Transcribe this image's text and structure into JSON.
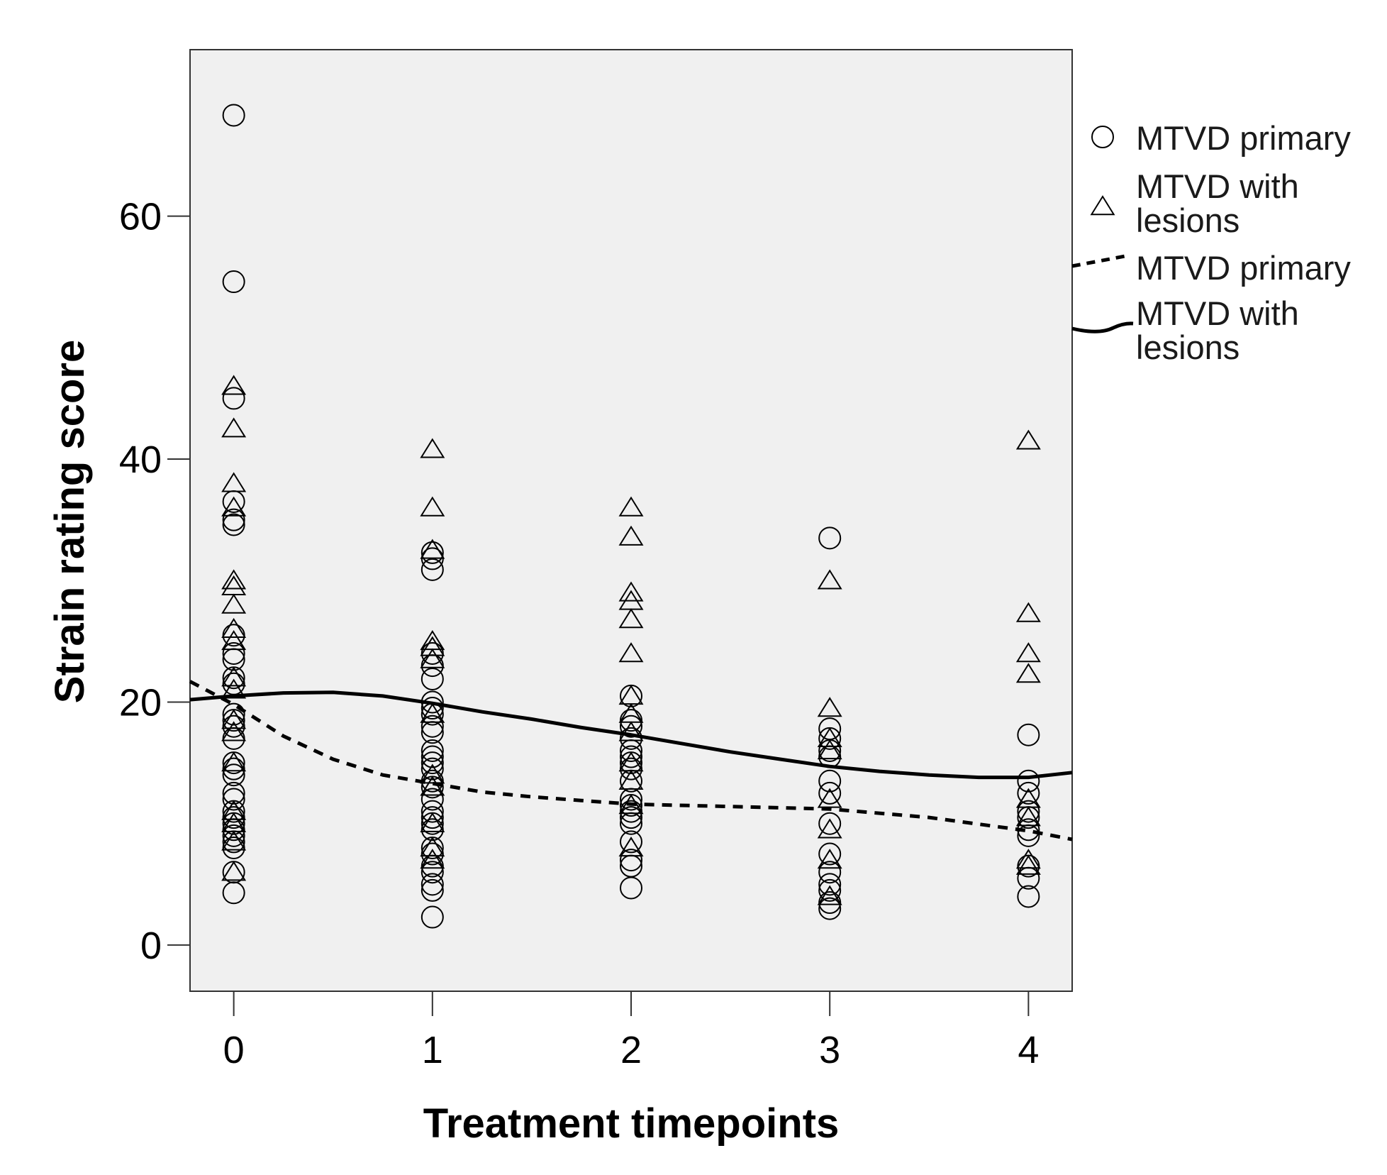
{
  "chart_data": {
    "type": "scatter",
    "xlabel": "Treatment timepoints",
    "ylabel": "Strain rating score",
    "x_ticks": [
      0,
      1,
      2,
      3,
      4
    ],
    "y_ticks": [
      0,
      20,
      40,
      60
    ],
    "xlim": [
      -0.22,
      4.22
    ],
    "ylim": [
      -3.8,
      73.7
    ],
    "grid": false,
    "legend_position": "right",
    "colors": {
      "plot_background": "#f0f0f0",
      "marker": "#000000",
      "line": "#000000"
    },
    "series": [
      {
        "name": "MTVD primary",
        "marker": "circle",
        "points": [
          [
            0,
            68.3
          ],
          [
            0,
            54.6
          ],
          [
            0,
            45.0
          ],
          [
            0,
            36.5
          ],
          [
            0,
            35.0
          ],
          [
            0,
            34.6
          ],
          [
            0,
            25.5
          ],
          [
            0,
            24.0
          ],
          [
            0,
            23.5
          ],
          [
            0,
            22.0
          ],
          [
            0,
            21.5
          ],
          [
            0,
            19.0
          ],
          [
            0,
            18.5
          ],
          [
            0,
            18.0
          ],
          [
            0,
            17.0
          ],
          [
            0,
            15.0
          ],
          [
            0,
            14.5
          ],
          [
            0,
            14.0
          ],
          [
            0,
            12.5
          ],
          [
            0,
            12.0
          ],
          [
            0,
            11.0
          ],
          [
            0,
            10.5
          ],
          [
            0,
            10.0
          ],
          [
            0,
            9.5
          ],
          [
            0,
            9.0
          ],
          [
            0,
            8.5
          ],
          [
            0,
            8.0
          ],
          [
            0,
            6.0
          ],
          [
            0,
            4.3
          ],
          [
            1,
            32.3
          ],
          [
            1,
            31.8
          ],
          [
            1,
            30.9
          ],
          [
            1,
            24.0
          ],
          [
            1,
            23.0
          ],
          [
            1,
            21.9
          ],
          [
            1,
            20.0
          ],
          [
            1,
            19.5
          ],
          [
            1,
            19.0
          ],
          [
            1,
            18.0
          ],
          [
            1,
            17.5
          ],
          [
            1,
            16.0
          ],
          [
            1,
            15.5
          ],
          [
            1,
            15.0
          ],
          [
            1,
            14.5
          ],
          [
            1,
            13.5
          ],
          [
            1,
            13.0
          ],
          [
            1,
            12.0
          ],
          [
            1,
            11.0
          ],
          [
            1,
            10.5
          ],
          [
            1,
            10.0
          ],
          [
            1,
            9.5
          ],
          [
            1,
            8.0
          ],
          [
            1,
            7.5
          ],
          [
            1,
            6.5
          ],
          [
            1,
            6.0
          ],
          [
            1,
            5.0
          ],
          [
            1,
            4.5
          ],
          [
            1,
            2.3
          ],
          [
            2,
            20.5
          ],
          [
            2,
            18.5
          ],
          [
            2,
            18.0
          ],
          [
            2,
            17.0
          ],
          [
            2,
            16.0
          ],
          [
            2,
            15.5
          ],
          [
            2,
            15.0
          ],
          [
            2,
            14.5
          ],
          [
            2,
            13.5
          ],
          [
            2,
            12.0
          ],
          [
            2,
            11.5
          ],
          [
            2,
            11.0
          ],
          [
            2,
            10.5
          ],
          [
            2,
            10.0
          ],
          [
            2,
            8.5
          ],
          [
            2,
            7.0
          ],
          [
            2,
            6.5
          ],
          [
            2,
            4.7
          ],
          [
            3,
            33.5
          ],
          [
            3,
            17.8
          ],
          [
            3,
            17.0
          ],
          [
            3,
            16.0
          ],
          [
            3,
            15.5
          ],
          [
            3,
            13.5
          ],
          [
            3,
            12.5
          ],
          [
            3,
            10.0
          ],
          [
            3,
            7.5
          ],
          [
            3,
            6.0
          ],
          [
            3,
            5.0
          ],
          [
            3,
            4.5
          ],
          [
            3,
            3.5
          ],
          [
            3,
            3.0
          ],
          [
            4,
            17.3
          ],
          [
            4,
            13.5
          ],
          [
            4,
            12.5
          ],
          [
            4,
            11.0
          ],
          [
            4,
            10.5
          ],
          [
            4,
            9.5
          ],
          [
            4,
            9.0
          ],
          [
            4,
            6.5
          ],
          [
            4,
            5.5
          ],
          [
            4,
            4.0
          ]
        ]
      },
      {
        "name": "MTVD with lesions",
        "marker": "triangle",
        "points": [
          [
            0,
            46.0
          ],
          [
            0,
            42.5
          ],
          [
            0,
            38.0
          ],
          [
            0,
            36.0
          ],
          [
            0,
            30.0
          ],
          [
            0,
            29.5
          ],
          [
            0,
            28.0
          ],
          [
            0,
            26.0
          ],
          [
            0,
            25.0
          ],
          [
            0,
            22.0
          ],
          [
            0,
            21.0
          ],
          [
            0,
            18.5
          ],
          [
            0,
            17.5
          ],
          [
            0,
            15.0
          ],
          [
            0,
            11.0
          ],
          [
            0,
            10.0
          ],
          [
            0,
            8.5
          ],
          [
            0,
            6.0
          ],
          [
            1,
            40.8
          ],
          [
            1,
            36.0
          ],
          [
            1,
            32.5
          ],
          [
            1,
            25.0
          ],
          [
            1,
            24.5
          ],
          [
            1,
            23.5
          ],
          [
            1,
            19.0
          ],
          [
            1,
            14.0
          ],
          [
            1,
            13.0
          ],
          [
            1,
            10.0
          ],
          [
            1,
            8.0
          ],
          [
            1,
            7.0
          ],
          [
            2,
            36.0
          ],
          [
            2,
            33.6
          ],
          [
            2,
            29.0
          ],
          [
            2,
            28.3
          ],
          [
            2,
            26.8
          ],
          [
            2,
            24.0
          ],
          [
            2,
            20.5
          ],
          [
            2,
            19.0
          ],
          [
            2,
            17.5
          ],
          [
            2,
            15.0
          ],
          [
            2,
            13.5
          ],
          [
            2,
            11.5
          ],
          [
            2,
            8.0
          ],
          [
            3,
            30.0
          ],
          [
            3,
            19.5
          ],
          [
            3,
            17.0
          ],
          [
            3,
            16.0
          ],
          [
            3,
            12.0
          ],
          [
            3,
            9.5
          ],
          [
            3,
            7.0
          ],
          [
            3,
            4.0
          ],
          [
            4,
            41.5
          ],
          [
            4,
            27.3
          ],
          [
            4,
            24.0
          ],
          [
            4,
            22.3
          ],
          [
            4,
            12.0
          ],
          [
            4,
            10.5
          ],
          [
            4,
            7.0
          ],
          [
            4,
            6.5
          ]
        ]
      }
    ],
    "fit_lines": [
      {
        "name": "MTVD primary",
        "style": "dashed",
        "points": [
          [
            -0.22,
            21.7
          ],
          [
            0,
            19.8
          ],
          [
            0.25,
            17.2
          ],
          [
            0.5,
            15.3
          ],
          [
            0.75,
            14.0
          ],
          [
            1,
            13.3
          ],
          [
            1.25,
            12.6
          ],
          [
            1.5,
            12.2
          ],
          [
            1.75,
            11.9
          ],
          [
            2,
            11.6
          ],
          [
            2.5,
            11.4
          ],
          [
            3,
            11.2
          ],
          [
            3.5,
            10.5
          ],
          [
            4,
            9.4
          ],
          [
            4.22,
            8.7
          ]
        ]
      },
      {
        "name": "MTVD with lesions",
        "style": "solid",
        "points": [
          [
            -0.22,
            20.2
          ],
          [
            0,
            20.5
          ],
          [
            0.25,
            20.75
          ],
          [
            0.5,
            20.8
          ],
          [
            0.75,
            20.5
          ],
          [
            1,
            19.9
          ],
          [
            1.25,
            19.2
          ],
          [
            1.5,
            18.6
          ],
          [
            1.75,
            17.9
          ],
          [
            2,
            17.3
          ],
          [
            2.25,
            16.6
          ],
          [
            2.5,
            15.9
          ],
          [
            2.75,
            15.3
          ],
          [
            3,
            14.7
          ],
          [
            3.25,
            14.3
          ],
          [
            3.5,
            14.0
          ],
          [
            3.75,
            13.8
          ],
          [
            4,
            13.8
          ],
          [
            4.22,
            14.2
          ]
        ]
      }
    ],
    "legend": {
      "markers": [
        {
          "symbol": "circle",
          "label_lines": [
            "MTVD primary"
          ]
        },
        {
          "symbol": "triangle",
          "label_lines": [
            "MTVD with",
            "lesions"
          ]
        }
      ],
      "lines": [
        {
          "style": "dashed",
          "label_lines": [
            "MTVD primary"
          ]
        },
        {
          "style": "solid",
          "label_lines": [
            "MTVD with",
            "lesions"
          ]
        }
      ]
    }
  }
}
